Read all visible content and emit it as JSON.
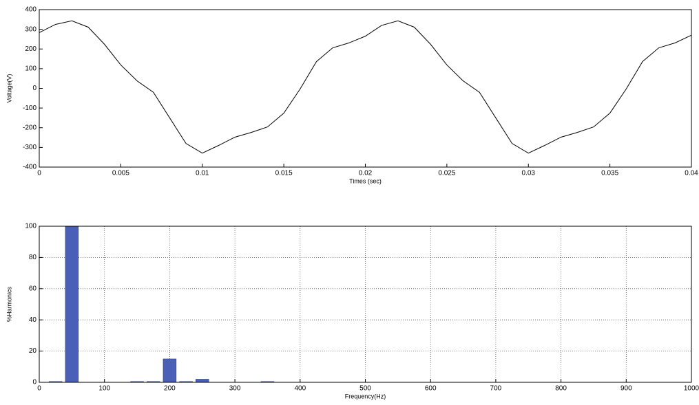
{
  "chart_data": [
    {
      "type": "line",
      "x": [
        0,
        0.001,
        0.002,
        0.003,
        0.004,
        0.005,
        0.006,
        0.007,
        0.008,
        0.009,
        0.01,
        0.011,
        0.012,
        0.013,
        0.014,
        0.015,
        0.016,
        0.017,
        0.018,
        0.019,
        0.02,
        0.021,
        0.022,
        0.023,
        0.024,
        0.025,
        0.026,
        0.027,
        0.028,
        0.029,
        0.03,
        0.031,
        0.032,
        0.033,
        0.034,
        0.035,
        0.036,
        0.037,
        0.038,
        0.039,
        0.04
      ],
      "series": [
        {
          "color": "#000000",
          "values": [
            283,
            325,
            343,
            311,
            224,
            119,
            38,
            -20,
            -150,
            -280,
            -329,
            -290,
            -248,
            -224,
            -196,
            -126,
            -3,
            136,
            206,
            231,
            265,
            320,
            343,
            311,
            224,
            119,
            38,
            -20,
            -150,
            -280,
            -329,
            -290,
            -248,
            -224,
            -196,
            -126,
            -3,
            136,
            206,
            231,
            270
          ]
        }
      ],
      "xlabel": "Times (sec)",
      "ylabel": "Voltage(V)",
      "xlim": [
        0,
        0.04
      ],
      "xticks": [
        0,
        0.005,
        0.01,
        0.015,
        0.02,
        0.025,
        0.03,
        0.035,
        0.04
      ],
      "ylim": [
        -400,
        400
      ],
      "yticks": [
        -400,
        -300,
        -200,
        -100,
        0,
        100,
        200,
        300,
        400
      ],
      "grid": false
    },
    {
      "type": "bar",
      "x": [
        25,
        50,
        150,
        175,
        200,
        225,
        250,
        350
      ],
      "values": [
        0.5,
        100,
        0.5,
        0.5,
        15,
        0.5,
        2,
        0.5
      ],
      "color": "#4a5fb8",
      "xlabel": "Frequency(Hz)",
      "ylabel": "%Harmonics",
      "xlim": [
        0,
        1000
      ],
      "xticks": [
        0,
        100,
        200,
        300,
        400,
        500,
        600,
        700,
        800,
        900,
        1000
      ],
      "ylim": [
        0,
        100
      ],
      "yticks": [
        0,
        20,
        40,
        60,
        80,
        100
      ],
      "grid": true
    }
  ]
}
